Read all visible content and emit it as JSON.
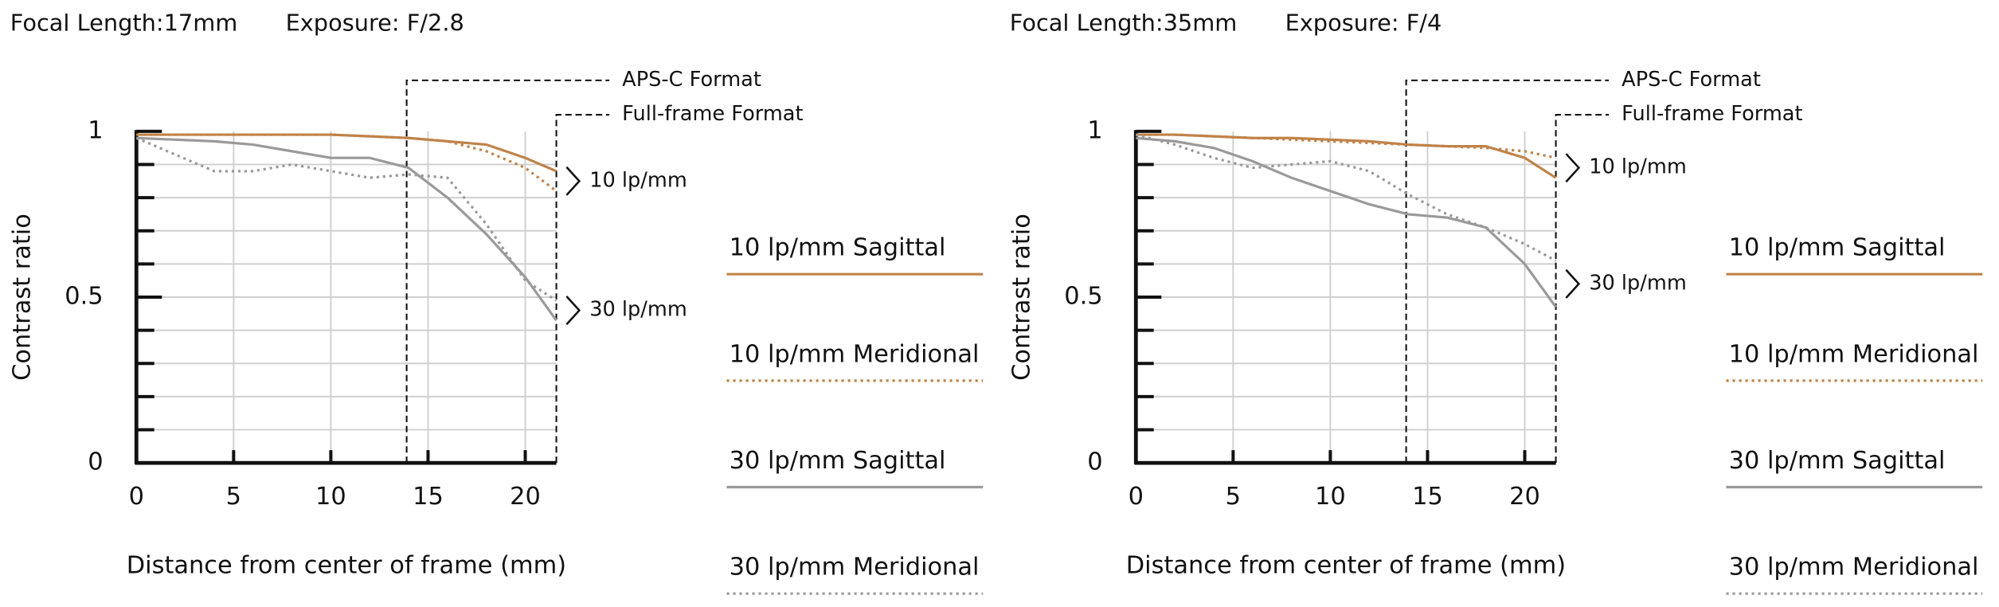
{
  "chart_data": [
    {
      "type": "line",
      "title": "Focal Length:17mm",
      "subtitle": "Exposure: F/2.8",
      "x_label": "Distance from center of frame (mm)",
      "y_label": "Contrast ratio",
      "x": [
        0,
        2,
        4,
        6,
        8,
        10,
        12,
        14,
        16,
        18,
        20,
        21.6
      ],
      "series": [
        {
          "name": "10 lp/mm Sagittal",
          "color": "#c0834a",
          "style": "solid",
          "values": [
            0.99,
            0.99,
            0.99,
            0.99,
            0.99,
            0.99,
            0.985,
            0.98,
            0.97,
            0.96,
            0.92,
            0.88
          ]
        },
        {
          "name": "10 lp/mm Meridional",
          "color": "#c0834a",
          "style": "dotted",
          "values": [
            0.99,
            0.99,
            0.99,
            0.99,
            0.99,
            0.99,
            0.985,
            0.98,
            0.97,
            0.94,
            0.89,
            0.82
          ]
        },
        {
          "name": "30 lp/mm Sagittal",
          "color": "#9a9a9a",
          "style": "solid",
          "values": [
            0.98,
            0.975,
            0.97,
            0.96,
            0.94,
            0.92,
            0.92,
            0.89,
            0.8,
            0.69,
            0.56,
            0.43
          ]
        },
        {
          "name": "30 lp/mm Meridional",
          "color": "#9a9a9a",
          "style": "dotted",
          "values": [
            0.98,
            0.93,
            0.88,
            0.88,
            0.9,
            0.88,
            0.86,
            0.87,
            0.86,
            0.72,
            0.55,
            0.49
          ]
        }
      ],
      "curve_labels": [
        {
          "text": "10 lp/mm",
          "series": [
            0,
            1
          ]
        },
        {
          "text": "30 lp/mm",
          "series": [
            2,
            3
          ]
        }
      ],
      "annotations": [
        {
          "text": "APS-C Format",
          "x": 13.9
        },
        {
          "text": "Full-frame Format",
          "x": 21.6
        }
      ],
      "xlim": [
        0,
        21.6
      ],
      "xticks": [
        0,
        5,
        10,
        15,
        20
      ],
      "ylim": [
        0,
        1
      ],
      "yticks": [
        0,
        0.5,
        1
      ],
      "y_minor_ticks": [
        0.1,
        0.2,
        0.3,
        0.4,
        0.6,
        0.7,
        0.8,
        0.9
      ],
      "grid": true
    },
    {
      "type": "line",
      "title": "Focal Length:35mm",
      "subtitle": "Exposure: F/4",
      "x_label": "Distance from center of frame (mm)",
      "y_label": "Contrast ratio",
      "x": [
        0,
        2,
        4,
        6,
        8,
        10,
        12,
        14,
        16,
        18,
        20,
        21.6
      ],
      "series": [
        {
          "name": "10 lp/mm Sagittal",
          "color": "#c0834a",
          "style": "solid",
          "values": [
            0.99,
            0.99,
            0.985,
            0.98,
            0.98,
            0.975,
            0.97,
            0.96,
            0.955,
            0.955,
            0.92,
            0.86
          ]
        },
        {
          "name": "10 lp/mm Meridional",
          "color": "#c0834a",
          "style": "dotted",
          "values": [
            0.99,
            0.99,
            0.985,
            0.98,
            0.975,
            0.97,
            0.965,
            0.96,
            0.955,
            0.95,
            0.94,
            0.92
          ]
        },
        {
          "name": "30 lp/mm Sagittal",
          "color": "#9a9a9a",
          "style": "solid",
          "values": [
            0.98,
            0.97,
            0.95,
            0.91,
            0.86,
            0.82,
            0.78,
            0.75,
            0.74,
            0.71,
            0.6,
            0.47
          ]
        },
        {
          "name": "30 lp/mm Meridional",
          "color": "#9a9a9a",
          "style": "dotted",
          "values": [
            0.99,
            0.96,
            0.92,
            0.89,
            0.9,
            0.91,
            0.88,
            0.81,
            0.75,
            0.71,
            0.66,
            0.61
          ]
        }
      ],
      "curve_labels": [
        {
          "text": "10 lp/mm",
          "series": [
            0,
            1
          ]
        },
        {
          "text": "30 lp/mm",
          "series": [
            2,
            3
          ]
        }
      ],
      "annotations": [
        {
          "text": "APS-C Format",
          "x": 13.9
        },
        {
          "text": "Full-frame Format",
          "x": 21.6
        }
      ],
      "xlim": [
        0,
        21.6
      ],
      "xticks": [
        0,
        5,
        10,
        15,
        20
      ],
      "ylim": [
        0,
        1
      ],
      "yticks": [
        0,
        0.5,
        1
      ],
      "y_minor_ticks": [
        0.1,
        0.2,
        0.3,
        0.4,
        0.6,
        0.7,
        0.8,
        0.9
      ],
      "grid": true
    }
  ]
}
